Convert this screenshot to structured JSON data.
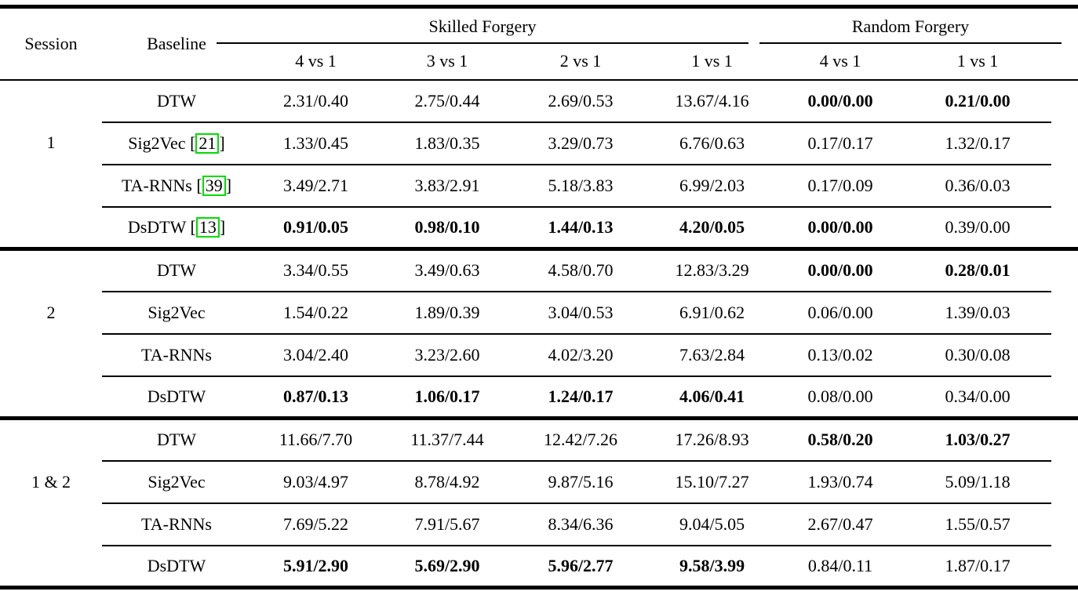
{
  "table": {
    "header": {
      "session": "Session",
      "baseline": "Baseline",
      "group_skilled": "Skilled Forgery",
      "group_random": "Random Forgery",
      "subcols_skilled": [
        "4 vs 1",
        "3 vs 1",
        "2 vs 1",
        "1 vs 1"
      ],
      "subcols_random": [
        "4 vs 1",
        "1 vs 1"
      ]
    },
    "citation_brackets": [
      "[",
      "]"
    ],
    "colors": {
      "text": "#000000",
      "background": "#ffffff",
      "rule": "#000000",
      "citation_box": "#00dd00"
    },
    "groups": [
      {
        "session": "1",
        "rows": [
          {
            "baseline": "DTW",
            "citation": null,
            "values": [
              "2.31/0.40",
              "2.75/0.44",
              "2.69/0.53",
              "13.67/4.16",
              "0.00/0.00",
              "0.21/0.00"
            ],
            "bold": [
              false,
              false,
              false,
              false,
              true,
              true
            ]
          },
          {
            "baseline": "Sig2Vec",
            "citation": "21",
            "values": [
              "1.33/0.45",
              "1.83/0.35",
              "3.29/0.73",
              "6.76/0.63",
              "0.17/0.17",
              "1.32/0.17"
            ],
            "bold": [
              false,
              false,
              false,
              false,
              false,
              false
            ]
          },
          {
            "baseline": "TA-RNNs",
            "citation": "39",
            "values": [
              "3.49/2.71",
              "3.83/2.91",
              "5.18/3.83",
              "6.99/2.03",
              "0.17/0.09",
              "0.36/0.03"
            ],
            "bold": [
              false,
              false,
              false,
              false,
              false,
              false
            ]
          },
          {
            "baseline": "DsDTW",
            "citation": "13",
            "values": [
              "0.91/0.05",
              "0.98/0.10",
              "1.44/0.13",
              "4.20/0.05",
              "0.00/0.00",
              "0.39/0.00"
            ],
            "bold": [
              true,
              true,
              true,
              true,
              true,
              false
            ]
          }
        ]
      },
      {
        "session": "2",
        "rows": [
          {
            "baseline": "DTW",
            "citation": null,
            "values": [
              "3.34/0.55",
              "3.49/0.63",
              "4.58/0.70",
              "12.83/3.29",
              "0.00/0.00",
              "0.28/0.01"
            ],
            "bold": [
              false,
              false,
              false,
              false,
              true,
              true
            ]
          },
          {
            "baseline": "Sig2Vec",
            "citation": null,
            "values": [
              "1.54/0.22",
              "1.89/0.39",
              "3.04/0.53",
              "6.91/0.62",
              "0.06/0.00",
              "1.39/0.03"
            ],
            "bold": [
              false,
              false,
              false,
              false,
              false,
              false
            ]
          },
          {
            "baseline": "TA-RNNs",
            "citation": null,
            "values": [
              "3.04/2.40",
              "3.23/2.60",
              "4.02/3.20",
              "7.63/2.84",
              "0.13/0.02",
              "0.30/0.08"
            ],
            "bold": [
              false,
              false,
              false,
              false,
              false,
              false
            ]
          },
          {
            "baseline": "DsDTW",
            "citation": null,
            "values": [
              "0.87/0.13",
              "1.06/0.17",
              "1.24/0.17",
              "4.06/0.41",
              "0.08/0.00",
              "0.34/0.00"
            ],
            "bold": [
              true,
              true,
              true,
              true,
              false,
              false
            ]
          }
        ]
      },
      {
        "session": "1 & 2",
        "rows": [
          {
            "baseline": "DTW",
            "citation": null,
            "values": [
              "11.66/7.70",
              "11.37/7.44",
              "12.42/7.26",
              "17.26/8.93",
              "0.58/0.20",
              "1.03/0.27"
            ],
            "bold": [
              false,
              false,
              false,
              false,
              true,
              true
            ]
          },
          {
            "baseline": "Sig2Vec",
            "citation": null,
            "values": [
              "9.03/4.97",
              "8.78/4.92",
              "9.87/5.16",
              "15.10/7.27",
              "1.93/0.74",
              "5.09/1.18"
            ],
            "bold": [
              false,
              false,
              false,
              false,
              false,
              false
            ]
          },
          {
            "baseline": "TA-RNNs",
            "citation": null,
            "values": [
              "7.69/5.22",
              "7.91/5.67",
              "8.34/6.36",
              "9.04/5.05",
              "2.67/0.47",
              "1.55/0.57"
            ],
            "bold": [
              false,
              false,
              false,
              false,
              false,
              false
            ]
          },
          {
            "baseline": "DsDTW",
            "citation": null,
            "values": [
              "5.91/2.90",
              "5.69/2.90",
              "5.96/2.77",
              "9.58/3.99",
              "0.84/0.11",
              "1.87/0.17"
            ],
            "bold": [
              true,
              true,
              true,
              true,
              false,
              false
            ]
          }
        ]
      }
    ]
  }
}
